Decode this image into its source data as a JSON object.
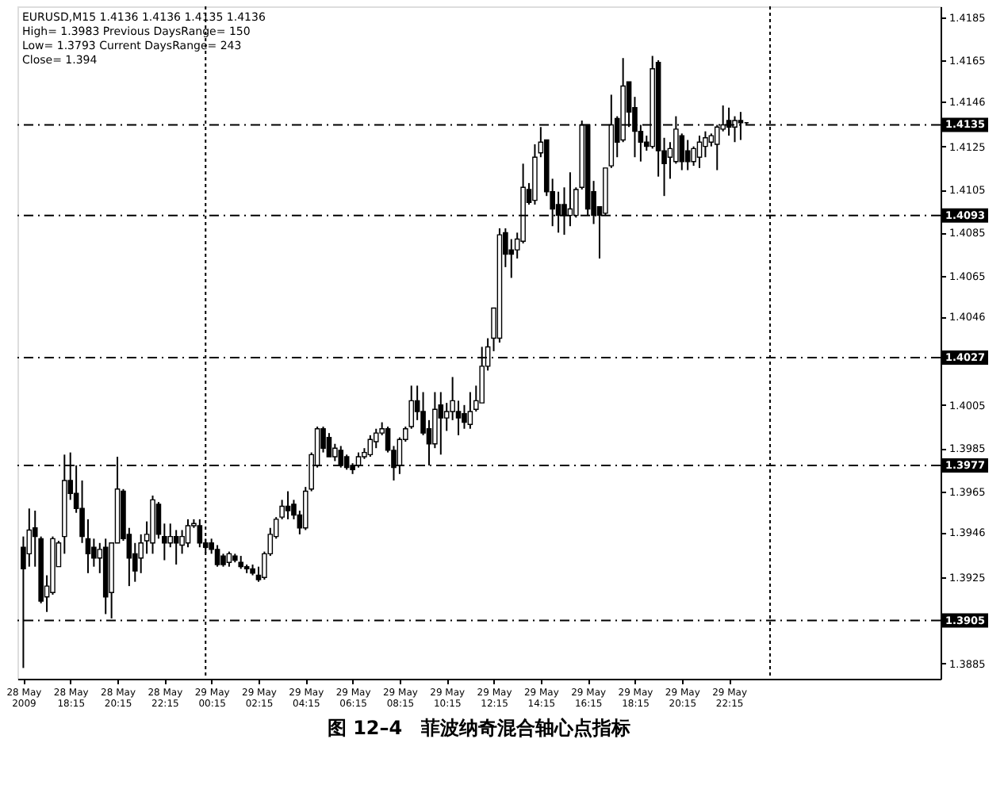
{
  "chart_data": {
    "type": "candlestick",
    "title": "图 12–4　菲波纳奇混合轴心点指标",
    "annotations": [
      "EURUSD,M15  1.4136 1.4136 1.4135 1.4136",
      "High= 1.3983 Previous DaysRange= 150",
      "Low= 1.3793 Current DaysRange= 243",
      "Close= 1.394"
    ],
    "x": [
      "2009-05-28T16:15",
      "2009-05-28T16:30",
      "2009-05-28T16:45",
      "2009-05-28T17:00",
      "2009-05-28T17:15",
      "2009-05-28T17:30",
      "2009-05-28T17:45",
      "2009-05-28T18:00",
      "2009-05-28T18:15",
      "2009-05-28T18:30",
      "2009-05-28T18:45",
      "2009-05-28T19:00",
      "2009-05-28T19:15",
      "2009-05-28T19:30",
      "2009-05-28T19:45",
      "2009-05-28T20:00",
      "2009-05-28T20:15",
      "2009-05-28T20:30",
      "2009-05-28T20:45",
      "2009-05-28T21:00",
      "2009-05-28T21:15",
      "2009-05-28T21:30",
      "2009-05-28T21:45",
      "2009-05-28T22:00",
      "2009-05-28T22:15",
      "2009-05-28T22:30",
      "2009-05-28T22:45",
      "2009-05-28T23:00",
      "2009-05-28T23:15",
      "2009-05-28T23:30",
      "2009-05-28T23:45",
      "2009-05-29T00:00",
      "2009-05-29T00:15",
      "2009-05-29T00:30",
      "2009-05-29T00:45",
      "2009-05-29T01:00",
      "2009-05-29T01:15",
      "2009-05-29T01:30",
      "2009-05-29T01:45",
      "2009-05-29T02:00",
      "2009-05-29T02:15",
      "2009-05-29T02:30",
      "2009-05-29T02:45",
      "2009-05-29T03:00",
      "2009-05-29T03:15",
      "2009-05-29T03:30",
      "2009-05-29T03:45",
      "2009-05-29T04:00",
      "2009-05-29T04:15",
      "2009-05-29T04:30",
      "2009-05-29T04:45",
      "2009-05-29T05:00",
      "2009-05-29T05:15",
      "2009-05-29T05:30",
      "2009-05-29T05:45",
      "2009-05-29T06:00",
      "2009-05-29T06:15",
      "2009-05-29T06:30",
      "2009-05-29T06:45",
      "2009-05-29T07:00",
      "2009-05-29T07:15",
      "2009-05-29T07:30",
      "2009-05-29T07:45",
      "2009-05-29T08:00",
      "2009-05-29T08:15",
      "2009-05-29T08:30",
      "2009-05-29T08:45",
      "2009-05-29T09:00",
      "2009-05-29T09:15",
      "2009-05-29T09:30",
      "2009-05-29T09:45",
      "2009-05-29T10:00",
      "2009-05-29T10:15",
      "2009-05-29T10:30",
      "2009-05-29T10:45",
      "2009-05-29T11:00",
      "2009-05-29T11:15",
      "2009-05-29T11:30",
      "2009-05-29T11:45",
      "2009-05-29T12:00",
      "2009-05-29T12:15",
      "2009-05-29T12:30",
      "2009-05-29T12:45",
      "2009-05-29T13:00",
      "2009-05-29T13:15",
      "2009-05-29T13:30",
      "2009-05-29T13:45",
      "2009-05-29T14:00",
      "2009-05-29T14:15",
      "2009-05-29T14:30",
      "2009-05-29T14:45",
      "2009-05-29T15:00",
      "2009-05-29T15:15",
      "2009-05-29T15:30",
      "2009-05-29T15:45",
      "2009-05-29T16:00",
      "2009-05-29T16:15",
      "2009-05-29T16:30",
      "2009-05-29T16:45",
      "2009-05-29T17:00",
      "2009-05-29T17:15",
      "2009-05-29T17:30",
      "2009-05-29T17:45",
      "2009-05-29T18:00",
      "2009-05-29T18:15",
      "2009-05-29T18:30",
      "2009-05-29T18:45",
      "2009-05-29T19:00",
      "2009-05-29T19:15",
      "2009-05-29T19:30",
      "2009-05-29T19:45",
      "2009-05-29T20:00",
      "2009-05-29T20:15",
      "2009-05-29T20:30",
      "2009-05-29T20:45",
      "2009-05-29T21:00",
      "2009-05-29T21:15",
      "2009-05-29T21:30",
      "2009-05-29T21:45",
      "2009-05-29T22:00",
      "2009-05-29T22:15",
      "2009-05-29T22:30",
      "2009-05-29T22:45",
      "2009-05-29T23:00"
    ],
    "ohlc": [
      [
        1.3939,
        1.3944,
        1.3883,
        1.3929
      ],
      [
        1.3936,
        1.3957,
        1.393,
        1.3947
      ],
      [
        1.3948,
        1.3956,
        1.393,
        1.3944
      ],
      [
        1.3943,
        1.3944,
        1.3913,
        1.3914
      ],
      [
        1.3916,
        1.3926,
        1.3909,
        1.3921
      ],
      [
        1.3918,
        1.3944,
        1.3917,
        1.3943
      ],
      [
        1.393,
        1.3942,
        1.393,
        1.3941
      ],
      [
        1.3944,
        1.3982,
        1.3936,
        1.397
      ],
      [
        1.397,
        1.3983,
        1.3961,
        1.3964
      ],
      [
        1.3964,
        1.3977,
        1.3955,
        1.3957
      ],
      [
        1.3957,
        1.397,
        1.3941,
        1.3944
      ],
      [
        1.3943,
        1.3952,
        1.3927,
        1.3936
      ],
      [
        1.3939,
        1.3943,
        1.393,
        1.3934
      ],
      [
        1.3934,
        1.3941,
        1.3927,
        1.3938
      ],
      [
        1.3939,
        1.3943,
        1.3908,
        1.3916
      ],
      [
        1.3918,
        1.3941,
        1.3906,
        1.3941
      ],
      [
        1.3941,
        1.3981,
        1.3941,
        1.3966
      ],
      [
        1.3965,
        1.3966,
        1.3942,
        1.3943
      ],
      [
        1.3945,
        1.3948,
        1.3921,
        1.3934
      ],
      [
        1.3936,
        1.3941,
        1.3923,
        1.3928
      ],
      [
        1.3934,
        1.3945,
        1.3927,
        1.3941
      ],
      [
        1.3942,
        1.3951,
        1.3936,
        1.3945
      ],
      [
        1.3941,
        1.3963,
        1.3936,
        1.3961
      ],
      [
        1.3959,
        1.396,
        1.3943,
        1.3945
      ],
      [
        1.3944,
        1.395,
        1.3933,
        1.3941
      ],
      [
        1.3941,
        1.395,
        1.3939,
        1.3944
      ],
      [
        1.3944,
        1.3947,
        1.3931,
        1.3941
      ],
      [
        1.394,
        1.3947,
        1.3936,
        1.3944
      ],
      [
        1.3941,
        1.3952,
        1.3939,
        1.3949
      ],
      [
        1.3949,
        1.3952,
        1.3948,
        1.395
      ],
      [
        1.3949,
        1.3952,
        1.3939,
        1.3941
      ],
      [
        1.3941,
        1.3943,
        1.3936,
        1.3939
      ],
      [
        1.3941,
        1.3943,
        1.3936,
        1.3938
      ],
      [
        1.3938,
        1.394,
        1.393,
        1.3931
      ],
      [
        1.3935,
        1.3936,
        1.393,
        1.3931
      ],
      [
        1.3932,
        1.3937,
        1.393,
        1.3936
      ],
      [
        1.3935,
        1.3936,
        1.3932,
        1.3933
      ],
      [
        1.3932,
        1.3935,
        1.3929,
        1.393
      ],
      [
        1.393,
        1.3931,
        1.3927,
        1.3929
      ],
      [
        1.3929,
        1.3931,
        1.3926,
        1.3927
      ],
      [
        1.3926,
        1.393,
        1.3923,
        1.3924
      ],
      [
        1.3925,
        1.3937,
        1.3924,
        1.3936
      ],
      [
        1.3936,
        1.3948,
        1.3935,
        1.3945
      ],
      [
        1.3944,
        1.3953,
        1.3943,
        1.3952
      ],
      [
        1.3953,
        1.3961,
        1.3952,
        1.3958
      ],
      [
        1.3958,
        1.3965,
        1.3952,
        1.3956
      ],
      [
        1.3959,
        1.3961,
        1.3952,
        1.3954
      ],
      [
        1.3954,
        1.3956,
        1.3945,
        1.3948
      ],
      [
        1.3948,
        1.3967,
        1.3947,
        1.3965
      ],
      [
        1.3966,
        1.3983,
        1.3965,
        1.3982
      ],
      [
        1.3977,
        1.3995,
        1.3976,
        1.3994
      ],
      [
        1.3994,
        1.3995,
        1.3983,
        1.3985
      ],
      [
        1.399,
        1.3992,
        1.3981,
        1.3981
      ],
      [
        1.3981,
        1.3987,
        1.3979,
        1.3985
      ],
      [
        1.3984,
        1.3986,
        1.3976,
        1.3977
      ],
      [
        1.3981,
        1.3982,
        1.3975,
        1.3976
      ],
      [
        1.3977,
        1.3978,
        1.3973,
        1.3975
      ],
      [
        1.3977,
        1.3983,
        1.3976,
        1.3981
      ],
      [
        1.3981,
        1.3985,
        1.398,
        1.3983
      ],
      [
        1.3982,
        1.3991,
        1.3981,
        1.3989
      ],
      [
        1.3988,
        1.3994,
        1.3985,
        1.3992
      ],
      [
        1.3992,
        1.3997,
        1.3991,
        1.3994
      ],
      [
        1.3994,
        1.3995,
        1.3983,
        1.3984
      ],
      [
        1.3984,
        1.3986,
        1.397,
        1.3976
      ],
      [
        1.3977,
        1.399,
        1.3973,
        1.3989
      ],
      [
        1.3989,
        1.3995,
        1.3988,
        1.3994
      ],
      [
        1.3995,
        1.4014,
        1.3994,
        1.4007
      ],
      [
        1.4007,
        1.4014,
        1.3998,
        1.4002
      ],
      [
        1.4002,
        1.4011,
        1.3991,
        1.3992
      ],
      [
        1.3994,
        1.3998,
        1.3977,
        1.3987
      ],
      [
        1.3987,
        1.4011,
        1.3985,
        1.4003
      ],
      [
        1.4005,
        1.4011,
        1.3982,
        1.3999
      ],
      [
        1.3999,
        1.4006,
        1.3993,
        1.4002
      ],
      [
        1.4002,
        1.4018,
        1.3998,
        1.4007
      ],
      [
        1.4002,
        1.4007,
        1.3991,
        1.3999
      ],
      [
        1.4001,
        1.4005,
        1.3994,
        1.3997
      ],
      [
        1.3996,
        1.4011,
        1.3994,
        1.4002
      ],
      [
        1.4003,
        1.4014,
        1.4002,
        1.4007
      ],
      [
        1.4006,
        1.4032,
        1.4006,
        1.4023
      ],
      [
        1.4023,
        1.4036,
        1.4021,
        1.4032
      ],
      [
        1.4036,
        1.405,
        1.403,
        1.405
      ],
      [
        1.4036,
        1.4087,
        1.4034,
        1.4084
      ],
      [
        1.4085,
        1.4087,
        1.4069,
        1.4075
      ],
      [
        1.4077,
        1.4082,
        1.4064,
        1.4075
      ],
      [
        1.4077,
        1.4085,
        1.4073,
        1.4082
      ],
      [
        1.4081,
        1.4117,
        1.408,
        1.4106
      ],
      [
        1.4105,
        1.4108,
        1.4098,
        1.4099
      ],
      [
        1.41,
        1.4126,
        1.4098,
        1.412
      ],
      [
        1.4122,
        1.4134,
        1.412,
        1.4127
      ],
      [
        1.4128,
        1.4128,
        1.4102,
        1.4104
      ],
      [
        1.4104,
        1.411,
        1.4088,
        1.4096
      ],
      [
        1.4098,
        1.4104,
        1.4085,
        1.4093
      ],
      [
        1.4098,
        1.4106,
        1.4084,
        1.4093
      ],
      [
        1.4093,
        1.4113,
        1.4088,
        1.4096
      ],
      [
        1.4093,
        1.4106,
        1.4092,
        1.4105
      ],
      [
        1.4106,
        1.4137,
        1.4105,
        1.4135
      ],
      [
        1.4135,
        1.4135,
        1.4093,
        1.4096
      ],
      [
        1.4104,
        1.4109,
        1.4089,
        1.4093
      ],
      [
        1.4097,
        1.4097,
        1.4073,
        1.4093
      ],
      [
        1.4094,
        1.4115,
        1.4093,
        1.4115
      ],
      [
        1.4116,
        1.4149,
        1.4115,
        1.4135
      ],
      [
        1.4138,
        1.4139,
        1.412,
        1.4127
      ],
      [
        1.4128,
        1.4166,
        1.4127,
        1.4153
      ],
      [
        1.4155,
        1.4155,
        1.4134,
        1.4141
      ],
      [
        1.4143,
        1.4148,
        1.412,
        1.4132
      ],
      [
        1.4132,
        1.4135,
        1.4118,
        1.4127
      ],
      [
        1.4127,
        1.413,
        1.4123,
        1.4125
      ],
      [
        1.4125,
        1.4167,
        1.4124,
        1.4161
      ],
      [
        1.4164,
        1.4165,
        1.4111,
        1.4123
      ],
      [
        1.4123,
        1.4129,
        1.4102,
        1.4117
      ],
      [
        1.412,
        1.4127,
        1.411,
        1.4124
      ],
      [
        1.4118,
        1.4139,
        1.4117,
        1.4133
      ],
      [
        1.413,
        1.4131,
        1.4114,
        1.4118
      ],
      [
        1.4123,
        1.4128,
        1.4114,
        1.4118
      ],
      [
        1.4118,
        1.4125,
        1.4116,
        1.4124
      ],
      [
        1.412,
        1.413,
        1.4115,
        1.4127
      ],
      [
        1.4125,
        1.4132,
        1.412,
        1.4129
      ],
      [
        1.4127,
        1.4131,
        1.4125,
        1.413
      ],
      [
        1.4126,
        1.4135,
        1.4114,
        1.4134
      ],
      [
        1.4133,
        1.4144,
        1.4132,
        1.4135
      ],
      [
        1.4137,
        1.4143,
        1.413,
        1.4134
      ],
      [
        1.4134,
        1.4139,
        1.4127,
        1.4137
      ],
      [
        1.4137,
        1.4141,
        1.4128,
        1.4136
      ],
      [
        1.4136,
        1.4136,
        1.4135,
        1.4136
      ]
    ],
    "xlim": [
      "2009-05-28T16:00",
      "2009-05-30T07:15"
    ],
    "xticks": [
      {
        "value": "2009-05-28T16:15",
        "label": "28 May 2009"
      },
      {
        "value": "2009-05-28T18:15",
        "label": "28 May 18:15"
      },
      {
        "value": "2009-05-28T20:15",
        "label": "28 May 20:15"
      },
      {
        "value": "2009-05-28T22:15",
        "label": "28 May 22:15"
      },
      {
        "value": "2009-05-29T00:15",
        "label": "29 May 00:15"
      },
      {
        "value": "2009-05-29T02:15",
        "label": "29 May 02:15"
      },
      {
        "value": "2009-05-29T04:15",
        "label": "29 May 04:15"
      },
      {
        "value": "2009-05-29T06:15",
        "label": "29 May 06:15"
      },
      {
        "value": "2009-05-29T08:15",
        "label": "29 May 08:15"
      },
      {
        "value": "2009-05-29T10:15",
        "label": "29 May 10:15"
      },
      {
        "value": "2009-05-29T12:15",
        "label": "29 May 12:15"
      },
      {
        "value": "2009-05-29T14:15",
        "label": "29 May 14:15"
      },
      {
        "value": "2009-05-29T16:15",
        "label": "29 May 16:15"
      },
      {
        "value": "2009-05-29T18:15",
        "label": "29 May 18:15"
      },
      {
        "value": "2009-05-29T20:15",
        "label": "29 May 20:15"
      },
      {
        "value": "2009-05-29T22:15",
        "label": "29 May 22:15"
      }
    ],
    "ylim": [
      1.3878,
      1.419
    ],
    "yticks": [
      1.4185,
      1.4165,
      1.4146,
      1.4125,
      1.4105,
      1.4085,
      1.4065,
      1.4046,
      1.4005,
      1.3985,
      1.3965,
      1.3946,
      1.3925,
      1.3885
    ],
    "ref_lines": [
      {
        "axis": "y",
        "value": 1.4135,
        "label": "1.4135",
        "line_style": "dashed"
      },
      {
        "axis": "y",
        "value": 1.4093,
        "label": "1.4093",
        "line_style": "dashed"
      },
      {
        "axis": "y",
        "value": 1.4027,
        "label": "1.4027",
        "line_style": "dashed"
      },
      {
        "axis": "y",
        "value": 1.3977,
        "label": "1.3977",
        "line_style": "dashed"
      },
      {
        "axis": "y",
        "value": 1.3905,
        "label": "1.3905",
        "line_style": "dashed"
      },
      {
        "axis": "x",
        "value": "2009-05-29T00:00",
        "line_style": "dotted"
      },
      {
        "axis": "x",
        "value": "2009-05-30T00:00",
        "line_style": "dotted"
      }
    ]
  }
}
